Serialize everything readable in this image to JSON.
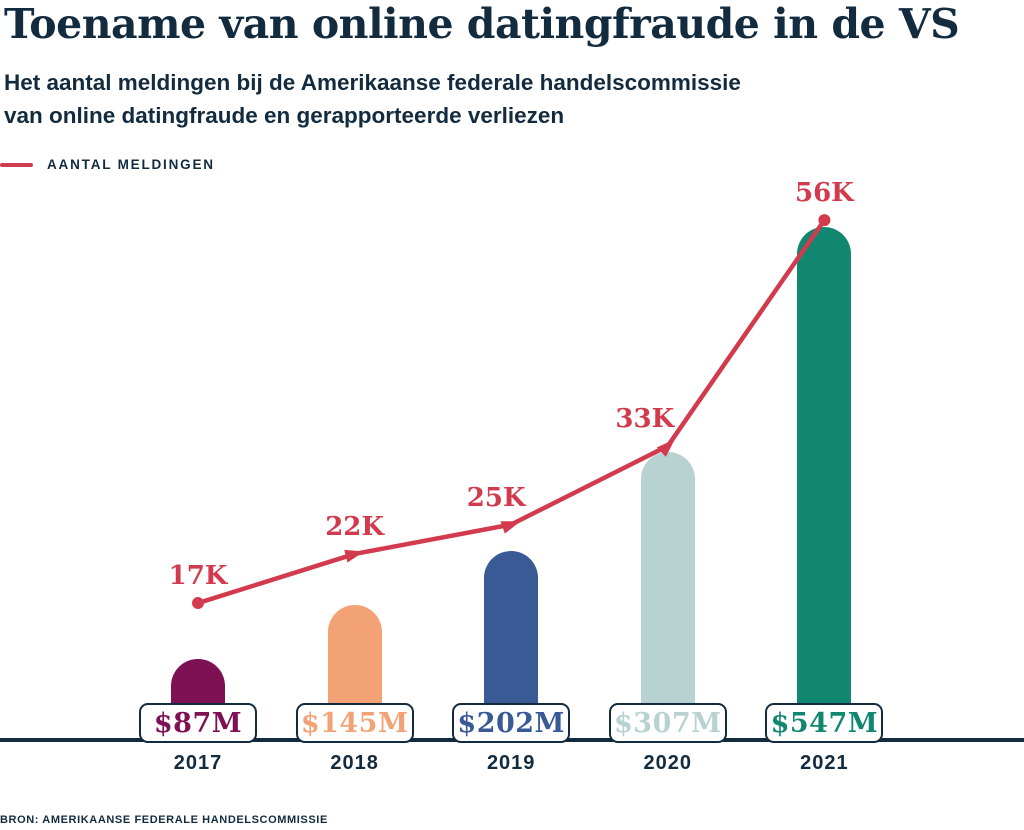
{
  "header": {
    "title": "Toename van online datingfraude in de VS",
    "subtitle_line1": "Het aantal meldingen bij de Amerikaanse federale handelscommissie",
    "subtitle_line2": "van online datingfraude en gerapporteerde verliezen",
    "legend_label": "AANTAL MELDINGEN"
  },
  "footer": {
    "source": "BRON: AMERIKAANSE FEDERALE HANDELSCOMMISSIE"
  },
  "colors": {
    "navy": "#132B3F",
    "red": "#D23B4D",
    "background": "#FFFFFF",
    "box_background": "#FFFFFF"
  },
  "chart_data": {
    "type": "bar",
    "subtype": "combo-bar-line",
    "title": "Toename van online datingfraude in de VS",
    "categories": [
      "2017",
      "2018",
      "2019",
      "2020",
      "2021"
    ],
    "series": [
      {
        "name": "Gerapporteerde verliezen",
        "type": "bar",
        "values": [
          87,
          145,
          202,
          307,
          547
        ],
        "unit": "miljoen dollar",
        "labels": [
          "$87M",
          "$145M",
          "$202M",
          "$307M",
          "$547M"
        ],
        "colors": [
          "#7E1054",
          "#F3A276",
          "#3A5A96",
          "#B7D2D1",
          "#12876F"
        ]
      },
      {
        "name": "Aantal meldingen",
        "type": "line",
        "values": [
          17,
          22,
          25,
          33,
          56
        ],
        "unit": "duizend meldingen",
        "labels": [
          "17K",
          "22K",
          "25K",
          "33K",
          "56K"
        ],
        "color": "#D23B4D"
      }
    ],
    "legend_position": "top-left",
    "grid": false,
    "axes": "baseline-only",
    "xlabel": "",
    "ylabel": ""
  }
}
